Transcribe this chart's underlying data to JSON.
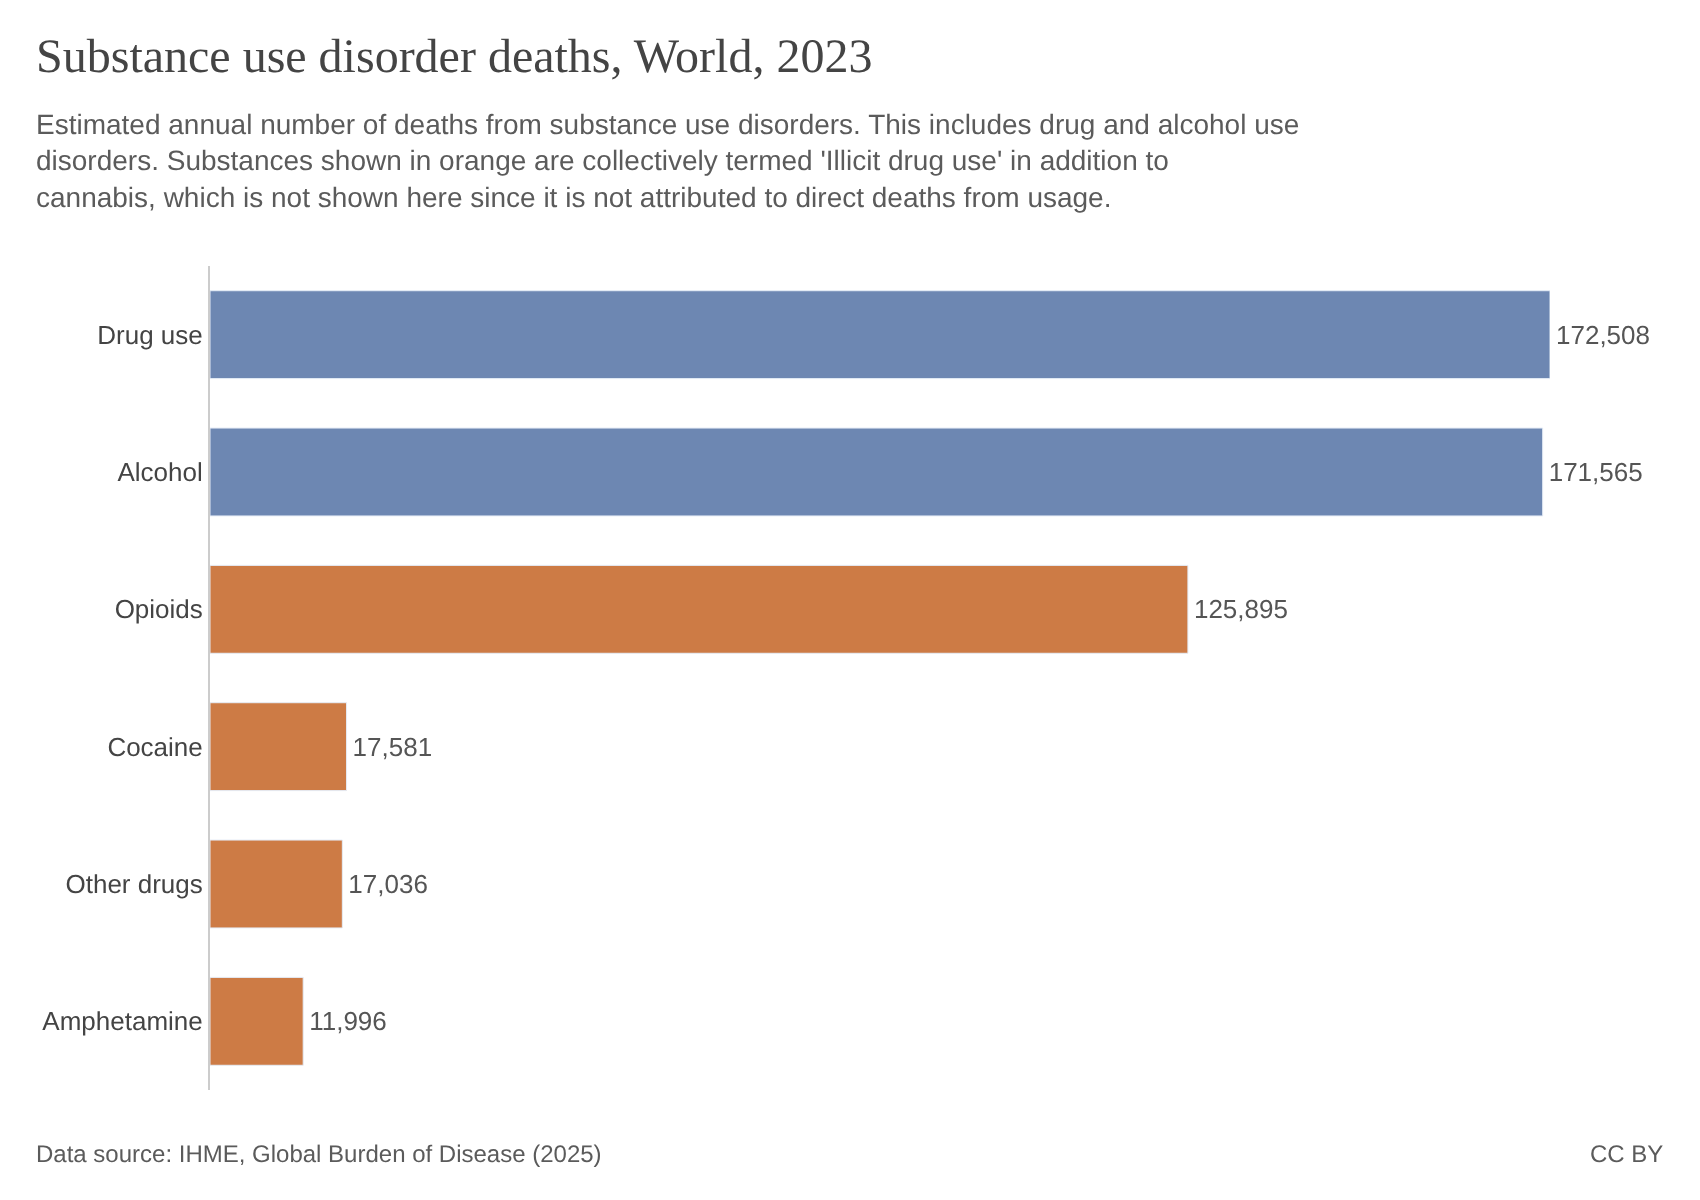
{
  "chart_data": {
    "type": "bar",
    "orientation": "horizontal",
    "title": "Substance use disorder deaths, World, 2023",
    "subtitle": "Estimated annual number of deaths from substance use disorders. This includes drug and alcohol use disorders. Substances shown in orange are collectively termed 'Illicit drug use' in addition to cannabis, which is not shown here since it is not attributed to direct deaths from usage.",
    "categories": [
      "Drug use",
      "Alcohol",
      "Opioids",
      "Cocaine",
      "Other drugs",
      "Amphetamine"
    ],
    "values": [
      172508,
      171565,
      125895,
      17581,
      17036,
      11996
    ],
    "colors": [
      "#6d87b2",
      "#6d87b2",
      "#cd7b45",
      "#cd7b45",
      "#cd7b45",
      "#cd7b45"
    ],
    "value_labels": [
      "172,508",
      "171,565",
      "125,895",
      "17,581",
      "17,036",
      "11,996"
    ],
    "annotations": [
      "Data source: IHME, Global Burden of Disease (2025)",
      "CC BY"
    ],
    "legend": false
  }
}
